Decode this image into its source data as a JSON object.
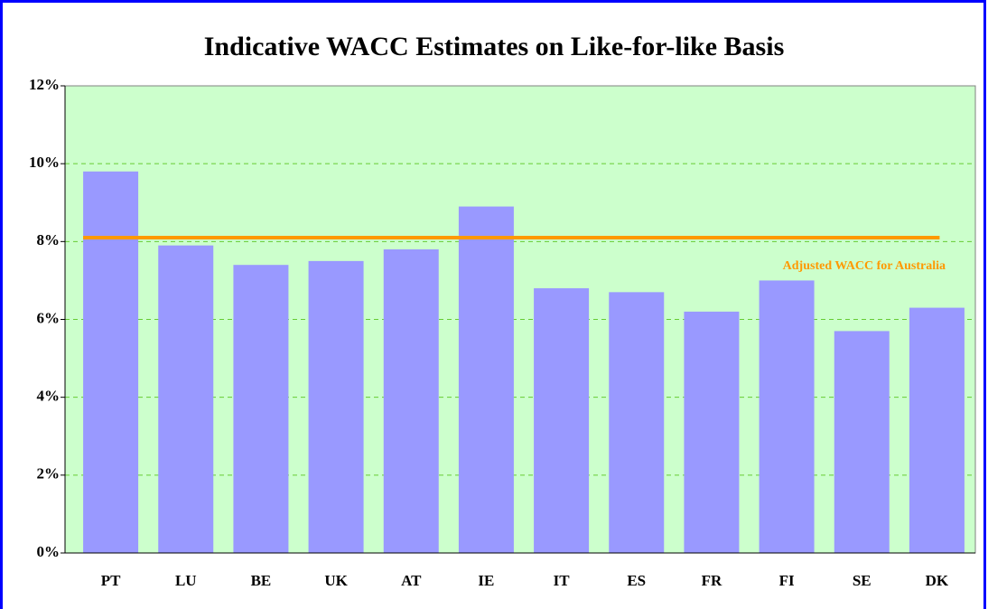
{
  "chart_data": {
    "type": "bar",
    "title": "Indicative WACC Estimates on Like-for-like Basis",
    "categories": [
      "PT",
      "LU",
      "BE",
      "UK",
      "AT",
      "IE",
      "IT",
      "ES",
      "FR",
      "FI",
      "SE",
      "DK"
    ],
    "values": [
      9.8,
      7.9,
      7.4,
      7.5,
      7.8,
      8.9,
      6.8,
      6.7,
      6.2,
      7.0,
      5.7,
      6.3
    ],
    "color": "#9999ff",
    "reference_line": {
      "name": "Adjusted WACC for Australia",
      "value": 8.1,
      "color": "#ff9900"
    },
    "ylim": [
      0,
      12
    ],
    "yticks": [
      {
        "value": 0,
        "label": "0%"
      },
      {
        "value": 2,
        "label": "2%"
      },
      {
        "value": 4,
        "label": "4%"
      },
      {
        "value": 6,
        "label": "6%"
      },
      {
        "value": 8,
        "label": "8%"
      },
      {
        "value": 10,
        "label": "10%"
      },
      {
        "value": 12,
        "label": "12%"
      }
    ],
    "grid": true
  }
}
